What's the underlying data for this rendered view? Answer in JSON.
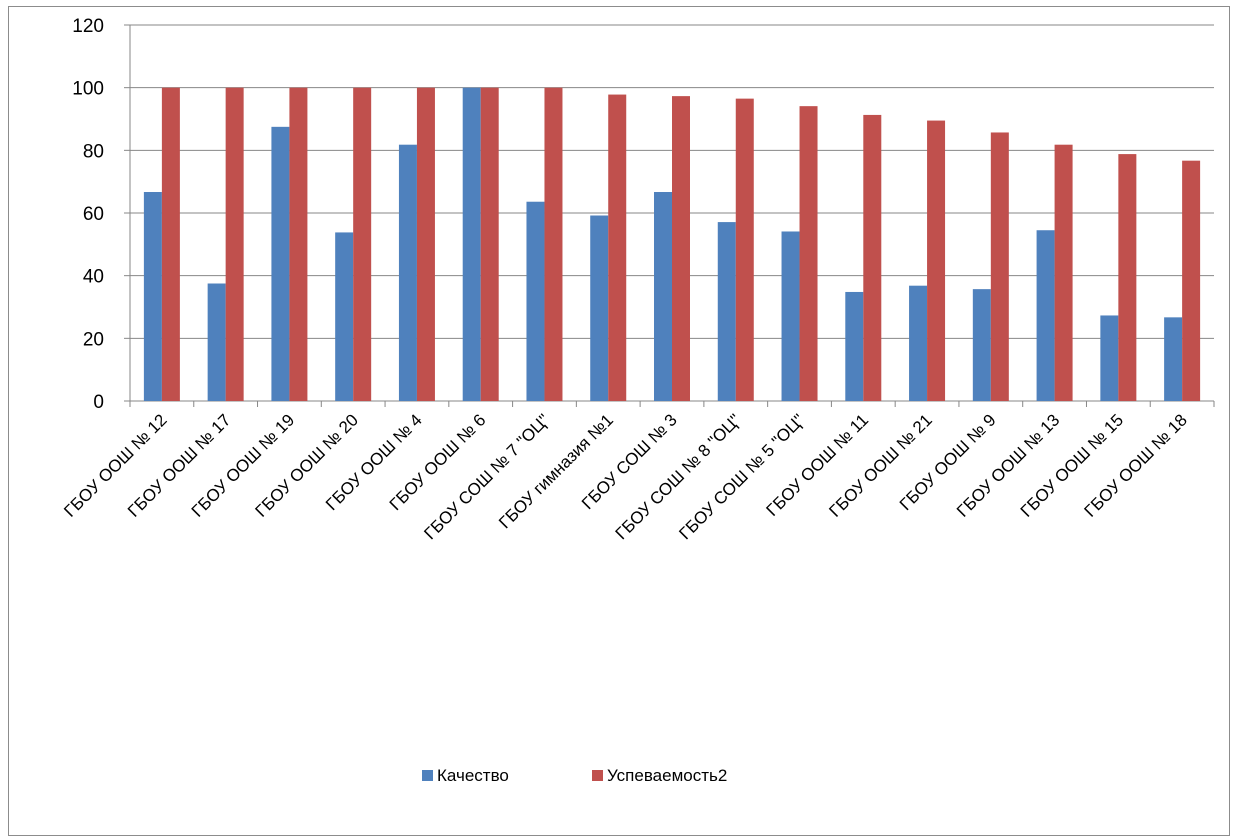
{
  "chart_data": {
    "type": "bar",
    "title": "",
    "xlabel": "",
    "ylabel": "",
    "ylim": [
      0,
      120
    ],
    "yticks": [
      0,
      20,
      40,
      60,
      80,
      100,
      120
    ],
    "grid": "horizontal",
    "legend_position": "bottom",
    "categories": [
      "ГБОУ ООШ № 12",
      "ГБОУ ООШ № 17",
      "ГБОУ ООШ № 19",
      "ГБОУ ООШ № 20",
      "ГБОУ ООШ № 4",
      "ГБОУ ООШ № 6",
      "ГБОУ СОШ № 7 \"ОЦ\"",
      "ГБОУ гимназия №1",
      "ГБОУ СОШ № 3",
      "ГБОУ СОШ № 8 \"ОЦ\"",
      "ГБОУ СОШ № 5 \"ОЦ\"",
      "ГБОУ ООШ № 11",
      "ГБОУ ООШ № 21",
      "ГБОУ ООШ № 9",
      "ГБОУ ООШ № 13",
      "ГБОУ ООШ № 15",
      "ГБОУ ООШ № 18"
    ],
    "series": [
      {
        "name": "Качество",
        "color": "#4f81bd",
        "values": [
          66.7,
          37.5,
          87.5,
          53.8,
          81.8,
          100,
          63.6,
          59.2,
          66.7,
          57.1,
          54.1,
          34.8,
          36.8,
          35.7,
          54.5,
          27.3,
          26.7
        ]
      },
      {
        "name": "Успеваемость2",
        "color": "#c0504d",
        "values": [
          100,
          100,
          100,
          100,
          100,
          100,
          100,
          97.8,
          97.3,
          96.5,
          94.1,
          91.3,
          89.5,
          85.7,
          81.8,
          78.8,
          76.7
        ]
      }
    ]
  }
}
